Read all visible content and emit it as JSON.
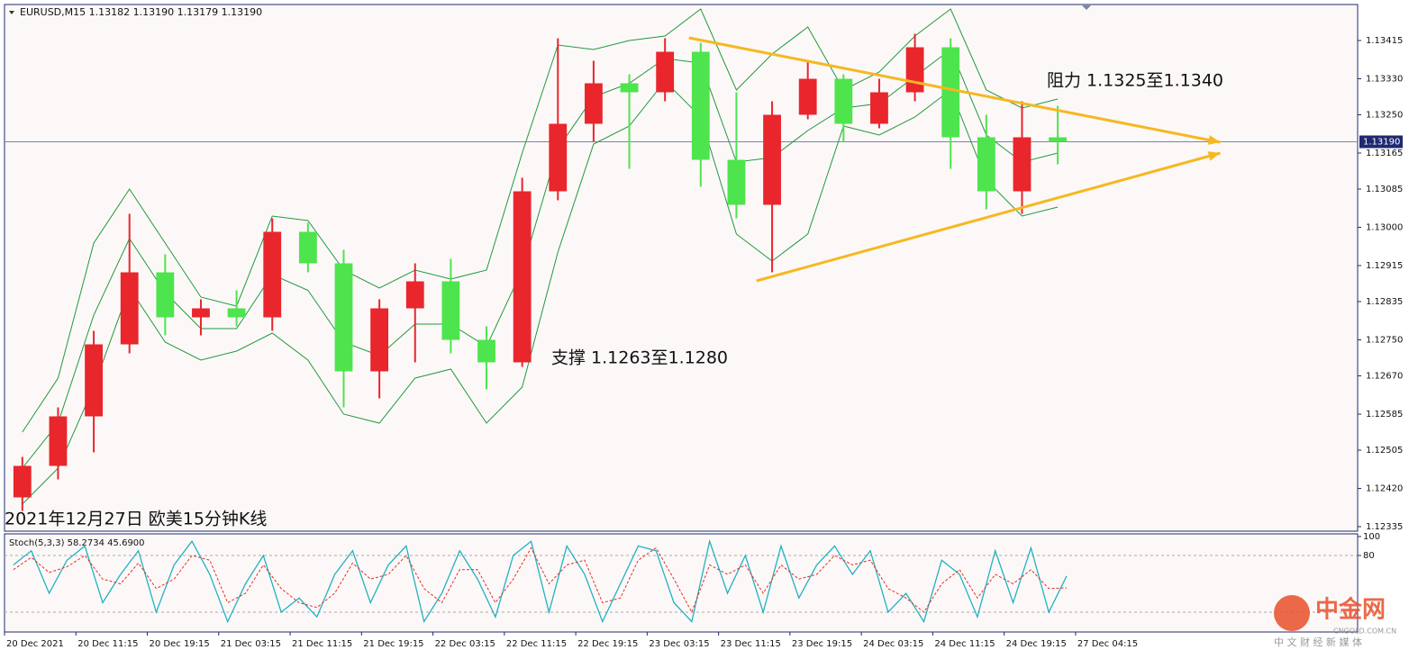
{
  "chart_data": {
    "type": "candlestick",
    "title": "EURUSD,M15  1.13182 1.13190 1.13179 1.13190",
    "xlim": [
      0,
      37.9
    ],
    "xticks": [
      {
        "value": 0,
        "label": "20 Dec 2021"
      },
      {
        "value": 2,
        "label": "20 Dec 11:15"
      },
      {
        "value": 4,
        "label": "20 Dec 19:15"
      },
      {
        "value": 6,
        "label": "21 Dec 03:15"
      },
      {
        "value": 8,
        "label": "21 Dec 11:15"
      },
      {
        "value": 10,
        "label": "21 Dec 19:15"
      },
      {
        "value": 12,
        "label": "22 Dec 03:15"
      },
      {
        "value": 14,
        "label": "22 Dec 11:15"
      },
      {
        "value": 16,
        "label": "22 Dec 19:15"
      },
      {
        "value": 18,
        "label": "23 Dec 03:15"
      },
      {
        "value": 20,
        "label": "23 Dec 11:15"
      },
      {
        "value": 22,
        "label": "23 Dec 19:15"
      },
      {
        "value": 24,
        "label": "24 Dec 03:15"
      },
      {
        "value": 26,
        "label": "24 Dec 11:15"
      },
      {
        "value": 28,
        "label": "24 Dec 19:15"
      },
      {
        "value": 30,
        "label": "27 Dec 04:15"
      }
    ],
    "ylim": [
      1.12325,
      1.13495
    ],
    "yticks": [
      1.13415,
      {
        "value": 1.1333,
        "label": "1.13330"
      },
      {
        "value": 1.1325,
        "label": "1.13250"
      },
      1.13165,
      1.13085,
      {
        "value": 1.13,
        "label": "1.13000"
      },
      1.12915,
      1.12835,
      {
        "value": 1.1275,
        "label": "1.12750"
      },
      {
        "value": 1.1267,
        "label": "1.12670"
      },
      1.12585,
      1.12505,
      {
        "value": 1.1242,
        "label": "1.12420"
      },
      1.12335
    ],
    "current_price": {
      "value": 1.1319,
      "label": "1.13190",
      "color": "#7a86a8"
    },
    "up_color": "#e8262c",
    "down_color": "#4ee44e",
    "candles": {
      "open": [
        1.124,
        1.1247,
        1.1258,
        1.1274,
        1.129,
        1.128,
        1.1282,
        1.128,
        1.1299,
        1.1292,
        1.1268,
        1.1282,
        1.1288,
        1.1275,
        1.127,
        1.1308,
        1.1323,
        1.1332,
        1.133,
        1.1339,
        1.1315,
        1.1305,
        1.1325,
        1.1333,
        1.1323,
        1.133,
        1.134,
        1.132,
        1.1308,
        1.132
      ],
      "high": [
        1.1249,
        1.126,
        1.1277,
        1.1303,
        1.1294,
        1.1284,
        1.1286,
        1.1302,
        1.1301,
        1.1295,
        1.1284,
        1.1292,
        1.1293,
        1.1278,
        1.1311,
        1.1342,
        1.1337,
        1.1334,
        1.1342,
        1.1341,
        1.133,
        1.1328,
        1.1337,
        1.1334,
        1.1333,
        1.1343,
        1.1342,
        1.1325,
        1.1328,
        1.1327
      ],
      "low": [
        1.1237,
        1.1244,
        1.125,
        1.1272,
        1.1276,
        1.1276,
        1.1278,
        1.1277,
        1.129,
        1.126,
        1.1262,
        1.127,
        1.1272,
        1.1264,
        1.1269,
        1.1306,
        1.1319,
        1.1313,
        1.1328,
        1.1309,
        1.1302,
        1.129,
        1.1324,
        1.1319,
        1.1322,
        1.1328,
        1.1313,
        1.1304,
        1.1303,
        1.1314
      ],
      "close": [
        1.1247,
        1.1258,
        1.1274,
        1.129,
        1.128,
        1.1282,
        1.128,
        1.1299,
        1.1292,
        1.1268,
        1.1282,
        1.1288,
        1.1275,
        1.127,
        1.1308,
        1.1323,
        1.1332,
        1.133,
        1.1339,
        1.1315,
        1.1305,
        1.1325,
        1.1333,
        1.1323,
        1.133,
        1.134,
        1.132,
        1.1308,
        1.132,
        1.1319
      ]
    },
    "bands_color": "#1f9a3c",
    "bands": {
      "upper": [
        1.12545,
        1.12665,
        1.12965,
        1.13085,
        1.12965,
        1.12845,
        1.12825,
        1.13025,
        1.13015,
        1.12905,
        1.12865,
        1.12905,
        1.12885,
        1.12905,
        1.13165,
        1.13405,
        1.13395,
        1.13415,
        1.13425,
        1.13485,
        1.13305,
        1.13385,
        1.13445,
        1.13305,
        1.13345,
        1.13425,
        1.13485,
        1.13305,
        1.13265,
        1.13285
      ],
      "middle": [
        1.12465,
        1.12565,
        1.12805,
        1.12975,
        1.12855,
        1.12775,
        1.12775,
        1.12895,
        1.1286,
        1.12745,
        1.12715,
        1.12785,
        1.12785,
        1.12735,
        1.12905,
        1.13175,
        1.1329,
        1.1332,
        1.13375,
        1.13365,
        1.13145,
        1.13155,
        1.13215,
        1.13265,
        1.13275,
        1.13335,
        1.13395,
        1.13205,
        1.13145,
        1.13165
      ],
      "lower": [
        1.12385,
        1.12465,
        1.12645,
        1.12865,
        1.12745,
        1.12705,
        1.12725,
        1.12765,
        1.12705,
        1.12585,
        1.12565,
        1.12665,
        1.12685,
        1.12565,
        1.12645,
        1.12945,
        1.13185,
        1.13225,
        1.13325,
        1.13245,
        1.12985,
        1.12925,
        1.12985,
        1.13225,
        1.13205,
        1.13245,
        1.13305,
        1.13105,
        1.13025,
        1.13045
      ]
    },
    "trendlines": [
      {
        "x": [
          19.17,
          34.05
        ],
        "y": [
          1.13421,
          1.13189
        ],
        "color": "#f5b820"
      },
      {
        "x": [
          21.06,
          34.05
        ],
        "y": [
          1.12881,
          1.13165
        ],
        "color": "#f5b820"
      }
    ],
    "annotations": [
      "阻力 1.1325至1.1340",
      "支撑 1.1263至1.1280",
      "2021年12月27日 欧美15分钟K线"
    ],
    "stochastic": {
      "title": "Stoch(5,3,3) 58.2734 45.6900",
      "ylim": [
        0,
        100
      ],
      "yticks": [
        100,
        80
      ],
      "levels": [
        80,
        20
      ],
      "main_color": "#20b2c0",
      "signal_color": "#e0302a",
      "main": [
        70,
        85,
        40,
        75,
        90,
        30,
        60,
        85,
        20,
        70,
        95,
        60,
        10,
        50,
        80,
        20,
        35,
        15,
        60,
        85,
        30,
        70,
        90,
        10,
        40,
        85,
        55,
        15,
        80,
        95,
        20,
        90,
        60,
        10,
        50,
        90,
        85,
        30,
        10,
        95,
        40,
        80,
        20,
        90,
        35,
        70,
        90,
        60,
        85,
        20,
        40,
        10,
        75,
        60,
        15,
        85,
        30,
        88,
        20,
        58.2734
      ],
      "signal": [
        65,
        78,
        62,
        68,
        80,
        55,
        50,
        72,
        45,
        55,
        80,
        75,
        30,
        40,
        70,
        45,
        30,
        25,
        40,
        72,
        55,
        60,
        80,
        45,
        30,
        65,
        65,
        30,
        55,
        88,
        50,
        70,
        75,
        30,
        35,
        75,
        88,
        55,
        20,
        70,
        60,
        70,
        40,
        70,
        55,
        60,
        80,
        70,
        75,
        45,
        35,
        20,
        50,
        65,
        35,
        60,
        50,
        65,
        45,
        45.69
      ]
    },
    "watermark": {
      "name": "中金网",
      "site": "CNGOLD.COM.CN",
      "slogan": "中 文 财 经 新 媒 体"
    }
  }
}
